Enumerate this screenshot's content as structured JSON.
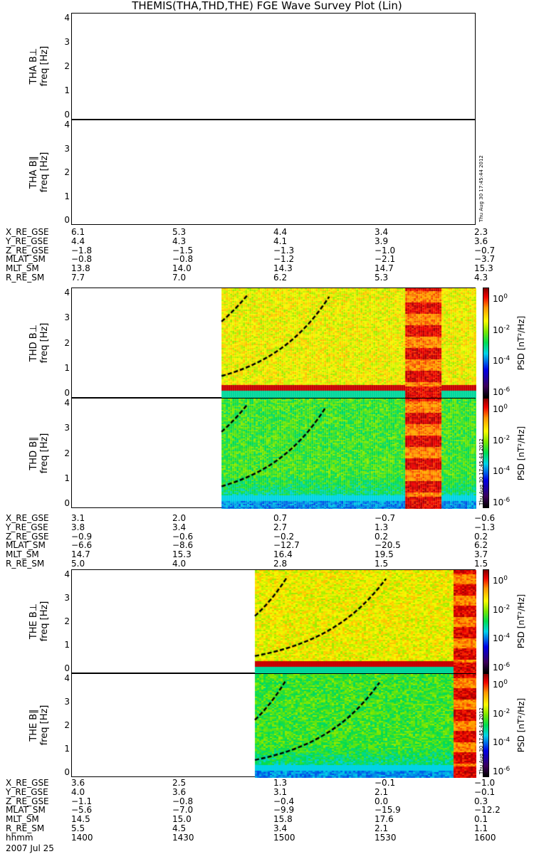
{
  "title": "THEMIS(THA,THD,THE) FGE Wave Survey Plot (Lin)",
  "timestamp": "Thu Aug 30 17:45:44 2012",
  "ylabel_unit": "freq [Hz]",
  "colorbar": {
    "title": "PSD [nT²/Hz]",
    "ticks": [
      "10",
      "10",
      "10",
      "10"
    ],
    "exps": [
      "0",
      "-2",
      "-4",
      "-6"
    ]
  },
  "chart_data": {
    "type": "heatmap",
    "title": "THEMIS(THA,THD,THE) FGE Wave Survey Plot (Lin)",
    "xlabel": "hhmm",
    "x_ticks": [
      "1400",
      "1430",
      "1500",
      "1530",
      "1600"
    ],
    "xlim_minutes": [
      0,
      120
    ],
    "ylabel": "freq [Hz]",
    "ylim": [
      0,
      4
    ],
    "y_ticks": [
      "0",
      "1",
      "2",
      "3",
      "4"
    ],
    "zlabel": "PSD [nT^2/Hz]",
    "zlim_log10": [
      -7,
      1.5
    ],
    "date": "2007 Jul 25",
    "panels": [
      {
        "name": "THA B⊥",
        "data_start_min": null
      },
      {
        "name": "THA B∥",
        "data_start_min": null
      },
      {
        "name": "THD B⊥",
        "data_start_min": 44.4,
        "burst": [
          98.7,
          109.4
        ],
        "curve": [
          0.7,
          4
        ],
        "curve_end_min": 77
      },
      {
        "name": "THD B∥",
        "data_start_min": 44.4,
        "burst": [
          98.7,
          109.4
        ],
        "curve": [
          0.7,
          4
        ],
        "curve_end_min": 76
      },
      {
        "name": "THE B⊥",
        "data_start_min": 54.3,
        "burst": [
          113,
          120
        ],
        "curve": [
          0.55,
          4
        ],
        "curve_end_min": 94
      },
      {
        "name": "THE B∥",
        "data_start_min": 54.3,
        "burst": [
          113,
          120
        ],
        "curve": [
          0.55,
          4
        ],
        "curve_end_min": 92
      }
    ]
  },
  "tables": [
    {
      "rows": [
        {
          "label": "X_RE_GSE",
          "v": [
            "6.1",
            "5.3",
            "4.4",
            "3.4",
            "2.3"
          ]
        },
        {
          "label": "Y_RE_GSE",
          "v": [
            "4.4",
            "4.3",
            "4.1",
            "3.9",
            "3.6"
          ]
        },
        {
          "label": "Z_RE_GSE",
          "v": [
            "−1.8",
            "−1.5",
            "−1.3",
            "−1.0",
            "−0.7"
          ]
        },
        {
          "label": "MLAT_SM",
          "v": [
            "−0.8",
            "−0.8",
            "−1.2",
            "−2.1",
            "−3.7"
          ]
        },
        {
          "label": "MLT_SM",
          "v": [
            "13.8",
            "14.0",
            "14.3",
            "14.7",
            "15.3"
          ]
        },
        {
          "label": "R_RE_SM",
          "v": [
            "7.7",
            "7.0",
            "6.2",
            "5.3",
            "4.3"
          ]
        }
      ]
    },
    {
      "rows": [
        {
          "label": "X_RE_GSE",
          "v": [
            "3.1",
            "2.0",
            "0.7",
            "−0.7",
            "−0.6"
          ]
        },
        {
          "label": "Y_RE_GSE",
          "v": [
            "3.8",
            "3.4",
            "2.7",
            "1.3",
            "−1.3"
          ]
        },
        {
          "label": "Z_RE_GSE",
          "v": [
            "−0.9",
            "−0.6",
            "−0.2",
            "0.2",
            "0.2"
          ]
        },
        {
          "label": "MLAT_SM",
          "v": [
            "−6.6",
            "−8.6",
            "−12.7",
            "−20.5",
            "6.2"
          ]
        },
        {
          "label": "MLT_SM",
          "v": [
            "14.7",
            "15.3",
            "16.4",
            "19.5",
            "3.7"
          ]
        },
        {
          "label": "R_RE_SM",
          "v": [
            "5.0",
            "4.0",
            "2.8",
            "1.5",
            "1.5"
          ]
        }
      ]
    },
    {
      "rows": [
        {
          "label": "X_RE_GSE",
          "v": [
            "3.6",
            "2.5",
            "1.3",
            "−0.1",
            "−1.0"
          ]
        },
        {
          "label": "Y_RE_GSE",
          "v": [
            "4.0",
            "3.6",
            "3.1",
            "2.1",
            "−0.1"
          ]
        },
        {
          "label": "Z_RE_GSE",
          "v": [
            "−1.1",
            "−0.8",
            "−0.4",
            "0.0",
            "0.3"
          ]
        },
        {
          "label": "MLAT_SM",
          "v": [
            "−5.6",
            "−7.0",
            "−9.9",
            "−15.9",
            "−12.2"
          ]
        },
        {
          "label": "MLT_SM",
          "v": [
            "14.5",
            "15.0",
            "15.8",
            "17.6",
            "0.1"
          ]
        },
        {
          "label": "R_RE_SM",
          "v": [
            "5.5",
            "4.5",
            "3.4",
            "2.1",
            "1.1"
          ]
        },
        {
          "label": "hhmm",
          "v": [
            "1400",
            "1430",
            "1500",
            "1530",
            "1600"
          ]
        }
      ]
    }
  ]
}
